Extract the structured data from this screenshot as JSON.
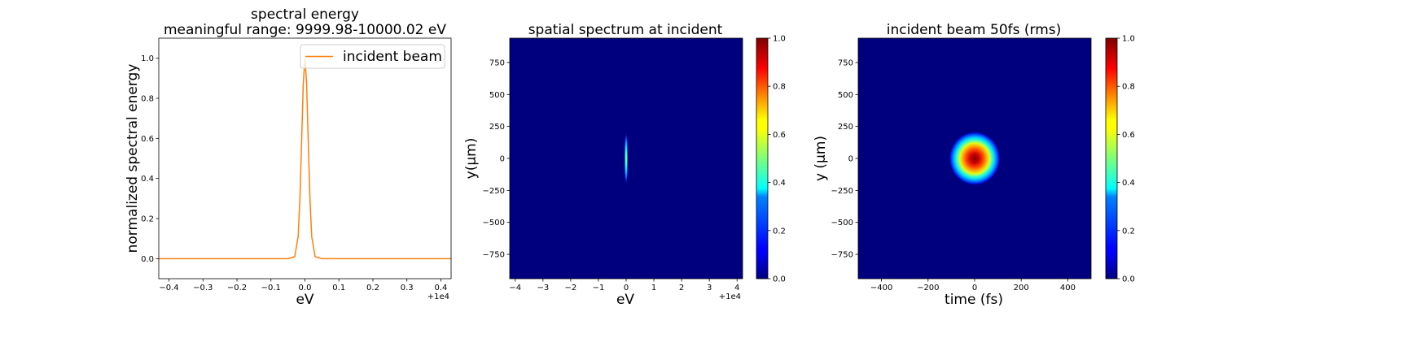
{
  "chart_data": [
    {
      "type": "line",
      "title": "spectral energy\nmeaningful range: 9999.98-10000.02 eV",
      "xlabel": "eV",
      "ylabel": "normalized spectral energy",
      "x_offset_label": "+1e4",
      "xlim": [
        -0.43,
        0.43
      ],
      "ylim": [
        -0.1,
        1.1
      ],
      "xticks": [
        -0.4,
        -0.3,
        -0.2,
        -0.1,
        0.0,
        0.1,
        0.2,
        0.3,
        0.4
      ],
      "xtick_labels": [
        "−0.4",
        "−0.3",
        "−0.2",
        "−0.1",
        "0.0",
        "0.1",
        "0.2",
        "0.3",
        "0.4"
      ],
      "yticks": [
        0.0,
        0.2,
        0.4,
        0.6,
        0.8,
        1.0
      ],
      "ytick_labels": [
        "0.0",
        "0.2",
        "0.4",
        "0.6",
        "0.8",
        "1.0"
      ],
      "grid": false,
      "legend": {
        "placement": "top-right",
        "entries": [
          "incident beam"
        ]
      },
      "series": [
        {
          "name": "incident beam",
          "color": "#ff7f0e",
          "x": [
            -0.43,
            -0.05,
            -0.03,
            -0.02,
            -0.015,
            -0.01,
            -0.005,
            0.0,
            0.005,
            0.01,
            0.015,
            0.02,
            0.03,
            0.05,
            0.43
          ],
          "y": [
            0.0,
            0.0,
            0.01,
            0.11,
            0.29,
            0.57,
            0.87,
            1.0,
            0.87,
            0.57,
            0.29,
            0.11,
            0.01,
            0.0,
            0.0
          ]
        }
      ]
    },
    {
      "type": "heatmap",
      "title": "spatial spectrum at incident",
      "xlabel": "eV",
      "ylabel": "y(μm)",
      "x_offset_label": "+1e4",
      "xlim": [
        -4.2,
        4.2
      ],
      "ylim": [
        -940,
        940
      ],
      "xticks": [
        -4,
        -3,
        -2,
        -1,
        0,
        1,
        2,
        3,
        4
      ],
      "xtick_labels": [
        "−4",
        "−3",
        "−2",
        "−1",
        "0",
        "1",
        "2",
        "3",
        "4"
      ],
      "yticks": [
        -750,
        -500,
        -250,
        0,
        250,
        500,
        750
      ],
      "ytick_labels": [
        "−750",
        "−500",
        "−250",
        "0",
        "250",
        "500",
        "750"
      ],
      "colormap": "jet",
      "colorbar_range": [
        0.0,
        1.0
      ],
      "colorbar_ticks": [
        "0.0",
        "0.2",
        "0.4",
        "0.6",
        "0.8",
        "1.0"
      ],
      "feature": {
        "center_x": 0.0,
        "center_y": 0,
        "sigma_x": 0.03,
        "sigma_y": 95,
        "peak": 0.6
      }
    },
    {
      "type": "heatmap",
      "title": "incident beam 50fs (rms)",
      "xlabel": "time (fs)",
      "ylabel": "y (μm)",
      "xlim": [
        -500,
        500
      ],
      "ylim": [
        -940,
        940
      ],
      "xticks": [
        -400,
        -200,
        0,
        200,
        400
      ],
      "xtick_labels": [
        "−400",
        "−200",
        "0",
        "200",
        "400"
      ],
      "yticks": [
        -750,
        -500,
        -250,
        0,
        250,
        500,
        750
      ],
      "ytick_labels": [
        "−750",
        "−500",
        "−250",
        "0",
        "250",
        "500",
        "750"
      ],
      "colormap": "jet",
      "colorbar_range": [
        0.0,
        1.0
      ],
      "colorbar_ticks": [
        "0.0",
        "0.2",
        "0.4",
        "0.6",
        "0.8",
        "1.0"
      ],
      "feature": {
        "center_x": 0,
        "center_y": 0,
        "sigma_x": 50,
        "sigma_y": 95,
        "peak": 1.0
      }
    }
  ]
}
